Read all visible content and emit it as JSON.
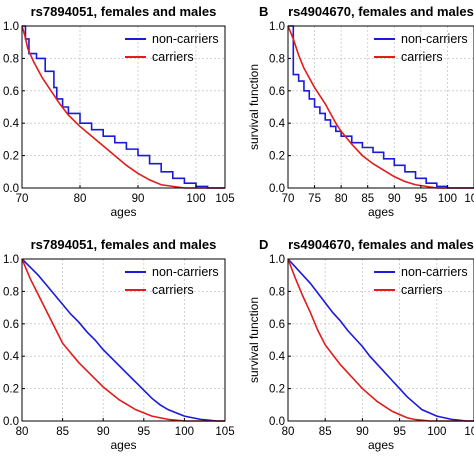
{
  "colors": {
    "non_carriers": "#1a1adb",
    "carriers": "#e21b1b"
  },
  "chart_data": [
    {
      "type": "line",
      "panel": "A",
      "panel_label_visible": false,
      "title": "rs7894051, females and males",
      "xlabel": "ages",
      "ylabel": "",
      "xlim": [
        70,
        105
      ],
      "ylim": [
        0.0,
        1.0
      ],
      "xticks": [
        "70",
        "80",
        "90",
        "100",
        "105"
      ],
      "yticks": [
        "0.0",
        "0.2",
        "0.4",
        "0.6",
        "0.8",
        "1.0"
      ],
      "grid": true,
      "legend": "top-right",
      "series": [
        {
          "name": "non-carriers",
          "color": "#1a1adb",
          "step": true,
          "x": [
            70,
            70.6,
            71.2,
            72.5,
            74,
            75.5,
            76,
            77,
            78,
            80,
            82,
            84,
            86,
            88,
            90,
            92,
            94,
            96,
            98,
            100,
            102,
            105
          ],
          "y": [
            1.0,
            0.92,
            0.83,
            0.8,
            0.72,
            0.62,
            0.55,
            0.5,
            0.46,
            0.4,
            0.36,
            0.32,
            0.28,
            0.24,
            0.2,
            0.15,
            0.1,
            0.06,
            0.03,
            0.01,
            0.0,
            0.0
          ]
        },
        {
          "name": "carriers",
          "color": "#e21b1b",
          "step": false,
          "x": [
            70,
            70.5,
            71,
            72,
            73.5,
            75,
            76.5,
            78,
            80,
            82,
            84,
            86,
            88,
            90,
            92,
            94,
            96,
            98,
            100,
            102,
            105
          ],
          "y": [
            1.0,
            0.94,
            0.86,
            0.78,
            0.68,
            0.6,
            0.52,
            0.45,
            0.38,
            0.32,
            0.26,
            0.2,
            0.14,
            0.09,
            0.05,
            0.02,
            0.01,
            0.0,
            0.0,
            0.0,
            0.0
          ]
        }
      ]
    },
    {
      "type": "line",
      "panel": "B",
      "panel_label_visible": true,
      "title": "rs4904670, females and males",
      "xlabel": "ages",
      "ylabel": "survival function",
      "xlim": [
        70,
        105
      ],
      "ylim": [
        0.0,
        1.0
      ],
      "xticks": [
        "70",
        "75",
        "80",
        "85",
        "90",
        "95",
        "100",
        "105"
      ],
      "yticks": [
        "0.0",
        "0.2",
        "0.4",
        "0.6",
        "0.8",
        "1.0"
      ],
      "grid": true,
      "legend": "top-right",
      "series": [
        {
          "name": "non-carriers",
          "color": "#1a1adb",
          "step": true,
          "x": [
            70,
            71,
            72,
            73,
            74,
            75,
            76,
            77,
            78,
            79,
            80,
            82,
            84,
            86,
            88,
            90,
            92,
            94,
            96,
            98,
            100,
            102,
            105
          ],
          "y": [
            1.0,
            0.7,
            0.66,
            0.6,
            0.55,
            0.5,
            0.46,
            0.42,
            0.38,
            0.35,
            0.32,
            0.28,
            0.25,
            0.22,
            0.18,
            0.14,
            0.1,
            0.06,
            0.03,
            0.01,
            0.0,
            0.0,
            0.0
          ]
        },
        {
          "name": "carriers",
          "color": "#e21b1b",
          "step": false,
          "x": [
            70,
            71,
            72,
            73,
            74,
            75,
            76,
            77,
            78,
            79,
            80,
            82,
            84,
            86,
            88,
            90,
            92,
            94,
            96,
            98,
            100,
            105
          ],
          "y": [
            1.0,
            0.92,
            0.82,
            0.74,
            0.68,
            0.62,
            0.57,
            0.52,
            0.46,
            0.4,
            0.35,
            0.27,
            0.2,
            0.15,
            0.11,
            0.07,
            0.04,
            0.02,
            0.01,
            0.0,
            0.0,
            0.0
          ]
        }
      ]
    },
    {
      "type": "line",
      "panel": "C",
      "panel_label_visible": false,
      "title": "rs7894051, females and males",
      "xlabel": "ages",
      "ylabel": "",
      "xlim": [
        80,
        105
      ],
      "ylim": [
        0.0,
        1.0
      ],
      "xticks": [
        "80",
        "85",
        "90",
        "95",
        "100",
        "105"
      ],
      "yticks": [
        "0.0",
        "0.2",
        "0.4",
        "0.6",
        "0.8",
        "1.0"
      ],
      "grid": true,
      "legend": "top-right",
      "series": [
        {
          "name": "non-carriers",
          "color": "#1a1adb",
          "step": false,
          "x": [
            80,
            81,
            82,
            83,
            84,
            85,
            86,
            87,
            88,
            89,
            90,
            91,
            92,
            93,
            94,
            95,
            96,
            97,
            98,
            99,
            100,
            101,
            102,
            103,
            104,
            105
          ],
          "y": [
            1.0,
            0.95,
            0.9,
            0.84,
            0.78,
            0.72,
            0.66,
            0.61,
            0.55,
            0.5,
            0.44,
            0.39,
            0.34,
            0.29,
            0.24,
            0.19,
            0.14,
            0.1,
            0.07,
            0.05,
            0.03,
            0.02,
            0.01,
            0.005,
            0.0,
            0.0
          ]
        },
        {
          "name": "carriers",
          "color": "#e21b1b",
          "step": false,
          "x": [
            80,
            81,
            82,
            83,
            84,
            85,
            86,
            87,
            88,
            89,
            90,
            91,
            92,
            93,
            94,
            95,
            96,
            97,
            98,
            99,
            100,
            101,
            102,
            105
          ],
          "y": [
            1.0,
            0.88,
            0.78,
            0.68,
            0.58,
            0.48,
            0.42,
            0.36,
            0.31,
            0.26,
            0.21,
            0.17,
            0.13,
            0.1,
            0.07,
            0.05,
            0.03,
            0.02,
            0.01,
            0.005,
            0.0,
            0.0,
            0.0,
            0.0
          ]
        }
      ]
    },
    {
      "type": "line",
      "panel": "D",
      "panel_label_visible": true,
      "title": "rs4904670, females and males",
      "xlabel": "ages",
      "ylabel": "survival function",
      "xlim": [
        80,
        105
      ],
      "ylim": [
        0.0,
        1.0
      ],
      "xticks": [
        "80",
        "85",
        "90",
        "95",
        "100",
        "105"
      ],
      "yticks": [
        "0.0",
        "0.2",
        "0.4",
        "0.6",
        "0.8",
        "1.0"
      ],
      "grid": true,
      "legend": "top-right",
      "series": [
        {
          "name": "non-carriers",
          "color": "#1a1adb",
          "step": false,
          "x": [
            80,
            81,
            82,
            83,
            84,
            85,
            86,
            87,
            88,
            89,
            90,
            91,
            92,
            93,
            94,
            95,
            96,
            97,
            98,
            99,
            100,
            101,
            102,
            103,
            104,
            105
          ],
          "y": [
            1.0,
            0.95,
            0.9,
            0.85,
            0.79,
            0.73,
            0.67,
            0.62,
            0.56,
            0.51,
            0.46,
            0.4,
            0.35,
            0.3,
            0.25,
            0.2,
            0.15,
            0.11,
            0.07,
            0.05,
            0.03,
            0.02,
            0.01,
            0.005,
            0.0,
            0.0
          ]
        },
        {
          "name": "carriers",
          "color": "#e21b1b",
          "step": false,
          "x": [
            80,
            81,
            82,
            83,
            84,
            85,
            86,
            87,
            88,
            89,
            90,
            91,
            92,
            93,
            94,
            95,
            96,
            97,
            98,
            99,
            100,
            101,
            105
          ],
          "y": [
            1.0,
            0.88,
            0.77,
            0.67,
            0.56,
            0.47,
            0.41,
            0.35,
            0.3,
            0.25,
            0.2,
            0.16,
            0.12,
            0.09,
            0.06,
            0.04,
            0.02,
            0.01,
            0.005,
            0.0,
            0.0,
            0.0,
            0.0
          ]
        }
      ]
    }
  ]
}
